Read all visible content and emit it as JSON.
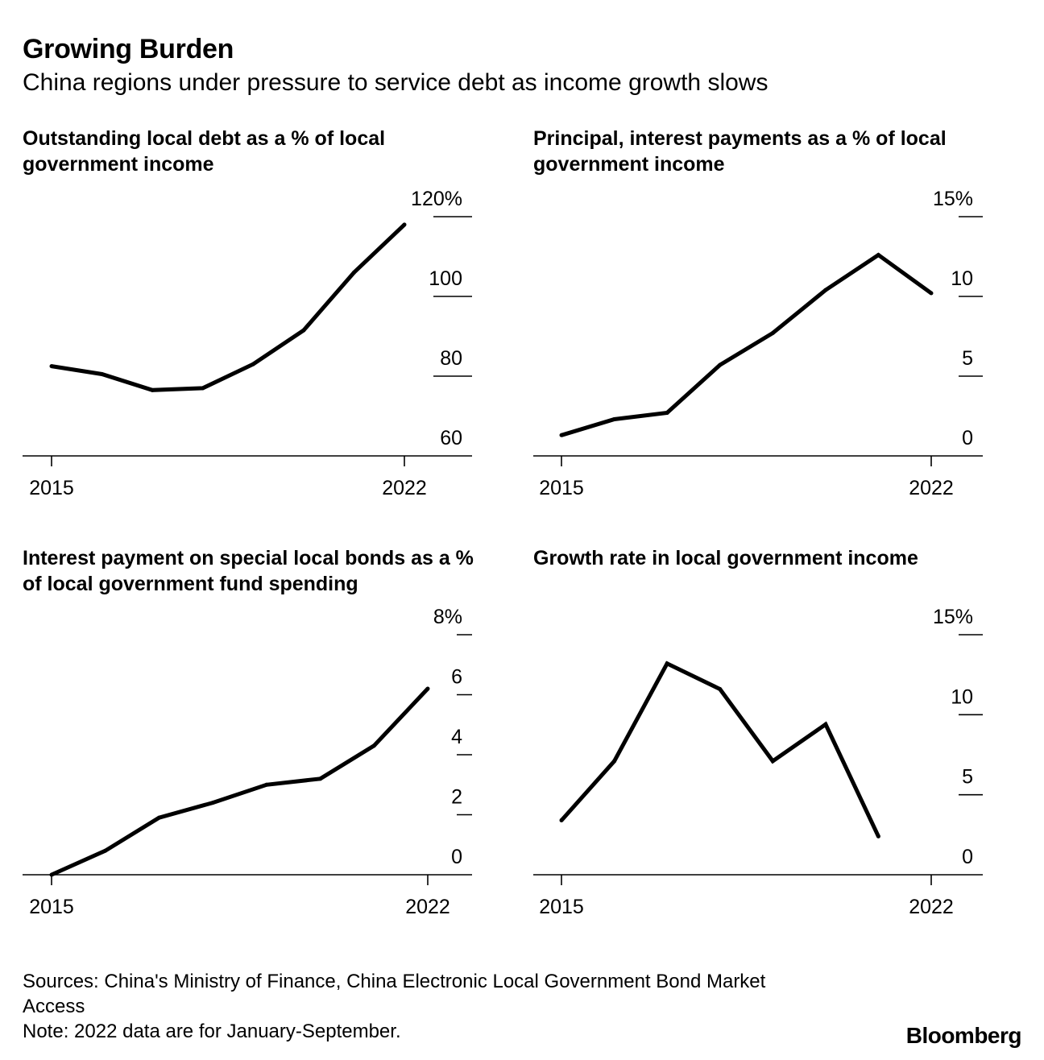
{
  "header": {
    "title": "Growing Burden",
    "subtitle": "China regions under pressure to service debt as income growth slows"
  },
  "chart_data": [
    {
      "type": "line",
      "title": "Outstanding local debt as a % of local government income",
      "x": [
        2015,
        2016,
        2017,
        2018,
        2019,
        2020,
        2021,
        2022
      ],
      "values": [
        82.5,
        80.5,
        76.5,
        77,
        83,
        91.5,
        106,
        118
      ],
      "xticks": [
        "2015",
        "2022"
      ],
      "yticks": [
        60,
        80,
        100,
        120
      ],
      "ytick_labels": [
        "60",
        "80",
        "100",
        "120%"
      ],
      "ylim": [
        60,
        120
      ]
    },
    {
      "type": "line",
      "title": "Principal, interest payments as a % of local government income",
      "x": [
        2015,
        2016,
        2017,
        2018,
        2019,
        2020,
        2021,
        2022
      ],
      "values": [
        1.3,
        2.3,
        2.7,
        5.7,
        7.7,
        10.4,
        12.6,
        10.2
      ],
      "xticks": [
        "2015",
        "2022"
      ],
      "yticks": [
        0,
        5,
        10,
        15
      ],
      "ytick_labels": [
        "0",
        "5",
        "10",
        "15%"
      ],
      "ylim": [
        0,
        15
      ]
    },
    {
      "type": "line",
      "title": "Interest payment on special local bonds as a % of local government fund spending",
      "x": [
        2015,
        2016,
        2017,
        2018,
        2019,
        2020,
        2021,
        2022
      ],
      "values": [
        0,
        0.8,
        1.9,
        2.4,
        3.0,
        3.2,
        4.3,
        6.2
      ],
      "xticks": [
        "2015",
        "2022"
      ],
      "yticks": [
        0,
        2,
        4,
        6,
        8
      ],
      "ytick_labels": [
        "0",
        "2",
        "4",
        "6",
        "8%"
      ],
      "ylim": [
        0,
        8
      ]
    },
    {
      "type": "line",
      "title": "Growth rate in local government income",
      "x": [
        2015,
        2016,
        2017,
        2018,
        2019,
        2020,
        2021
      ],
      "values": [
        3.4,
        7.1,
        13.2,
        11.6,
        7.1,
        9.4,
        2.4
      ],
      "xticks": [
        "2015",
        "2022"
      ],
      "yticks": [
        0,
        5,
        10,
        15
      ],
      "ytick_labels": [
        "0",
        "5",
        "10",
        "15%"
      ],
      "ylim": [
        0,
        15
      ]
    }
  ],
  "footer": {
    "sources": "Sources: China's Ministry of Finance, China Electronic Local Government Bond Market Access",
    "note": "Note: 2022 data are for January-September.",
    "brand": "Bloomberg"
  }
}
